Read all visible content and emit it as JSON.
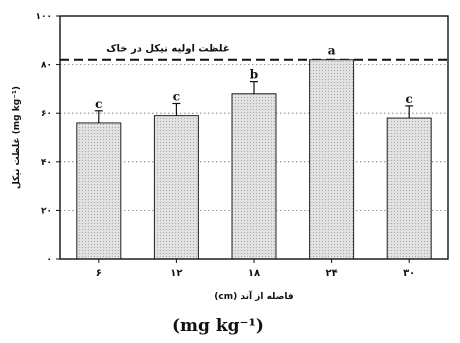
{
  "chart_data": {
    "type": "bar",
    "categories": [
      "۶",
      "۱۲",
      "۱۸",
      "۲۴",
      "۳۰"
    ],
    "values": [
      56,
      59,
      68,
      82,
      58
    ],
    "errors": [
      5,
      5,
      5,
      0,
      5
    ],
    "significance": [
      "c",
      "c",
      "b",
      "a",
      "c"
    ],
    "ylim": [
      0,
      100
    ],
    "yticks": [
      0,
      20,
      40,
      60,
      80,
      100
    ],
    "ytick_labels": [
      "۰",
      "۲۰",
      "۴۰",
      "۶۰",
      "۸۰",
      "۱۰۰"
    ],
    "reference_line": {
      "value": 82,
      "label": "غلظت اولیه نیکل در خاک"
    },
    "xlabel": "فاصله از آند (cm)",
    "ylabel": "غلظت نیکل (mg kg⁻¹)",
    "grid": "horizontal dotted",
    "bar_fill": "#d4d4d4"
  },
  "caption": "(mg kg⁻¹)"
}
